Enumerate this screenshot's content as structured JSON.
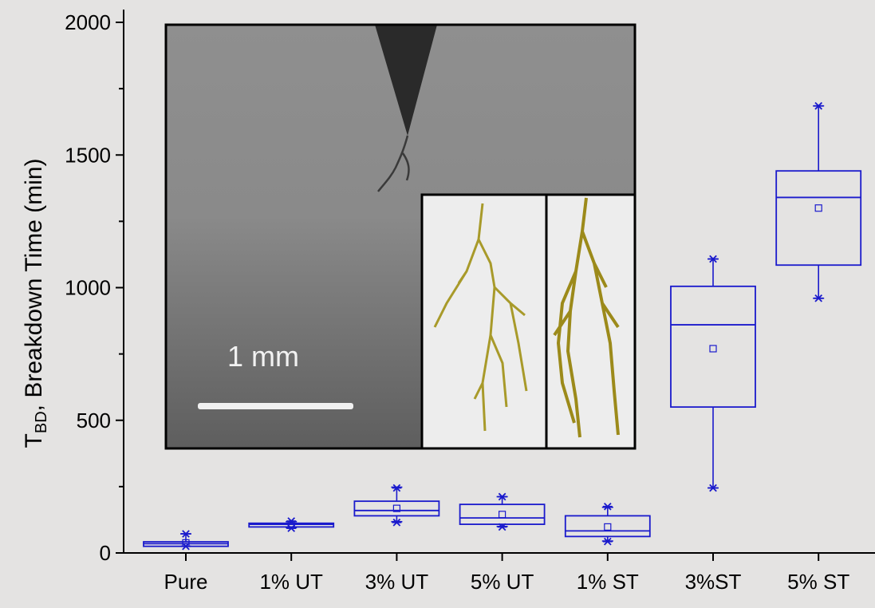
{
  "chart_data": {
    "type": "box",
    "categories": [
      "Pure",
      "1% UT",
      "3% UT",
      "5% UT",
      "1% ST",
      "3%ST",
      "5% ST"
    ],
    "series": [
      {
        "color": "#1a1acc",
        "boxes": [
          {
            "min": 25,
            "q1": 25,
            "median": 35,
            "q3": 42,
            "max": 72,
            "mean": 38,
            "outliers_low": [
              25
            ],
            "outliers_high": [
              72
            ]
          },
          {
            "min": 95,
            "q1": 98,
            "median": 108,
            "q3": 112,
            "max": 118,
            "mean": 106,
            "outliers_low": [
              93
            ],
            "outliers_high": [
              120
            ]
          },
          {
            "min": 118,
            "q1": 140,
            "median": 160,
            "q3": 195,
            "max": 248,
            "mean": 168,
            "outliers_low": [
              115
            ],
            "outliers_high": [
              245
            ]
          },
          {
            "min": 100,
            "q1": 108,
            "median": 132,
            "q3": 183,
            "max": 212,
            "mean": 145,
            "outliers_low": [
              98
            ],
            "outliers_high": [
              212
            ]
          },
          {
            "min": 45,
            "q1": 62,
            "median": 83,
            "q3": 140,
            "max": 172,
            "mean": 98,
            "outliers_low": [
              43
            ],
            "outliers_high": [
              175
            ]
          },
          {
            "min": 245,
            "q1": 550,
            "median": 860,
            "q3": 1005,
            "max": 1108,
            "mean": 770,
            "outliers_low": [
              245
            ],
            "outliers_high": [
              1108
            ]
          },
          {
            "min": 960,
            "q1": 1085,
            "median": 1340,
            "q3": 1440,
            "max": 1685,
            "mean": 1300,
            "outliers_low": [
              960
            ],
            "outliers_high": [
              1685
            ]
          }
        ]
      }
    ],
    "ylabel": {
      "main": "T",
      "sub": "BD",
      "rest": ", Breakdown Time (min)"
    },
    "ylim": [
      0,
      2000
    ],
    "yticks": [
      0,
      500,
      1000,
      1500,
      2000
    ],
    "grid": false
  },
  "inset": {
    "scale_label": "1 mm"
  },
  "colors": {
    "box": "#1a1acc",
    "background": "#e4e3e2",
    "tree": "#9c8a1a"
  }
}
